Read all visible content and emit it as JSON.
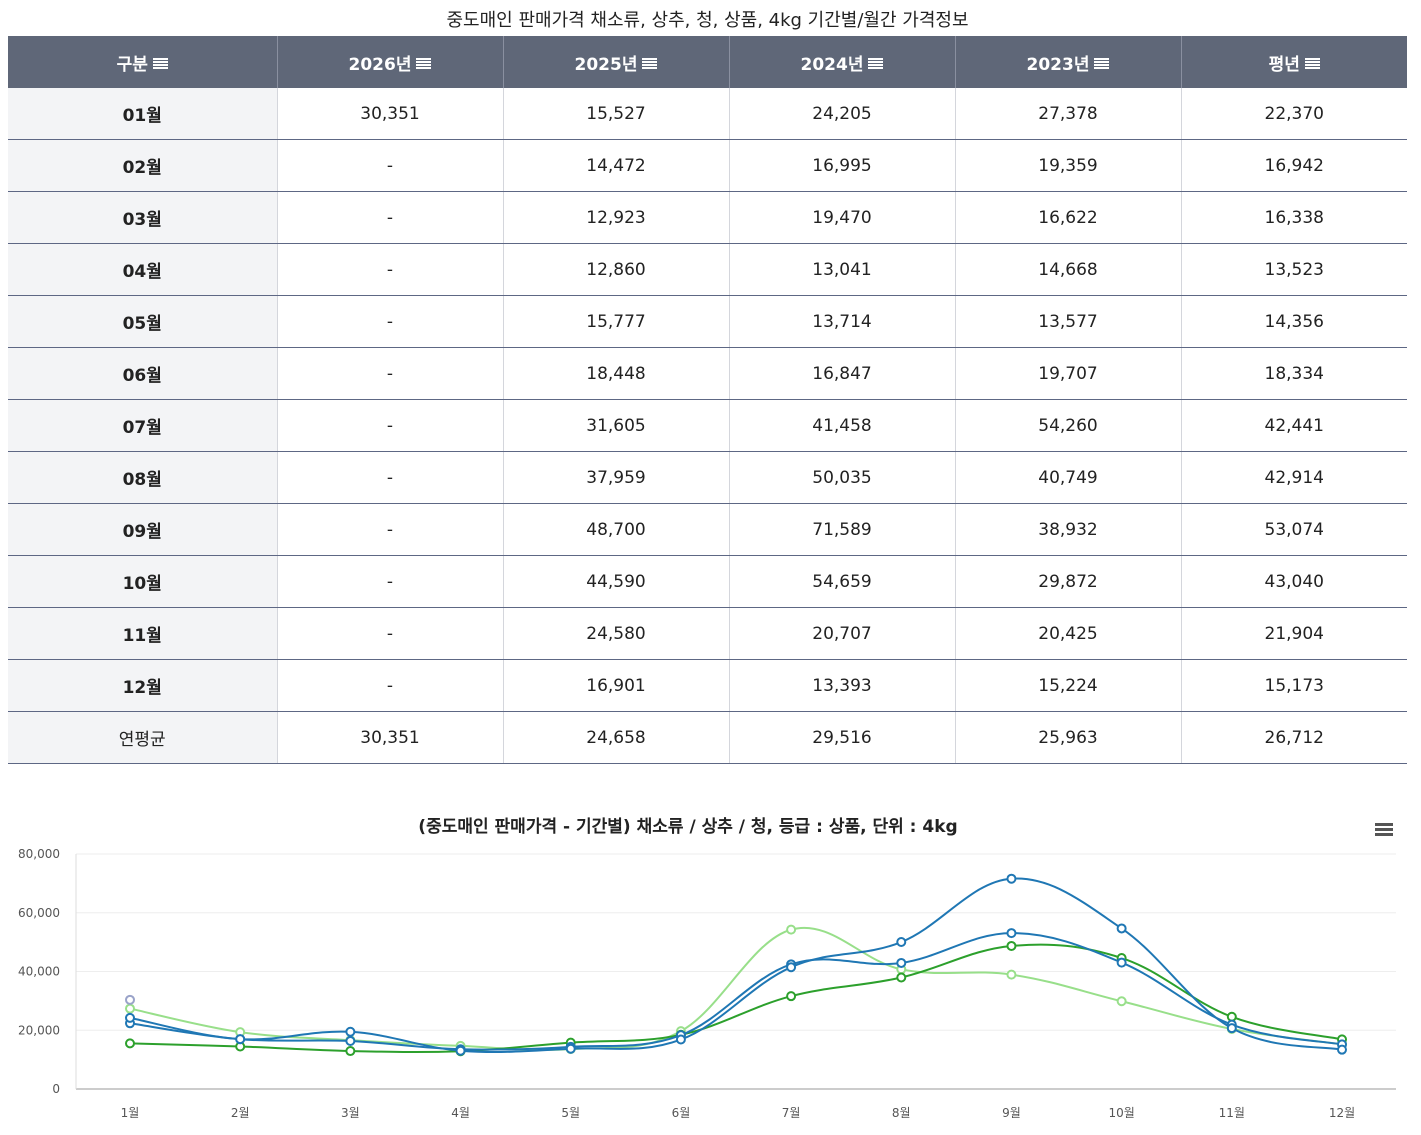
{
  "table": {
    "title": "중도매인 판매가격 채소류, 상추, 청, 상품, 4kg 기간별/월간 가격정보",
    "headers": [
      "구분",
      "2026년",
      "2025년",
      "2024년",
      "2023년",
      "평년"
    ],
    "rows": [
      {
        "label": "01월",
        "values": [
          "30,351",
          "15,527",
          "24,205",
          "27,378",
          "22,370"
        ]
      },
      {
        "label": "02월",
        "values": [
          "-",
          "14,472",
          "16,995",
          "19,359",
          "16,942"
        ]
      },
      {
        "label": "03월",
        "values": [
          "-",
          "12,923",
          "19,470",
          "16,622",
          "16,338"
        ]
      },
      {
        "label": "04월",
        "values": [
          "-",
          "12,860",
          "13,041",
          "14,668",
          "13,523"
        ]
      },
      {
        "label": "05월",
        "values": [
          "-",
          "15,777",
          "13,714",
          "13,577",
          "14,356"
        ]
      },
      {
        "label": "06월",
        "values": [
          "-",
          "18,448",
          "16,847",
          "19,707",
          "18,334"
        ]
      },
      {
        "label": "07월",
        "values": [
          "-",
          "31,605",
          "41,458",
          "54,260",
          "42,441"
        ]
      },
      {
        "label": "08월",
        "values": [
          "-",
          "37,959",
          "50,035",
          "40,749",
          "42,914"
        ]
      },
      {
        "label": "09월",
        "values": [
          "-",
          "48,700",
          "71,589",
          "38,932",
          "53,074"
        ]
      },
      {
        "label": "10월",
        "values": [
          "-",
          "44,590",
          "54,659",
          "29,872",
          "43,040"
        ]
      },
      {
        "label": "11월",
        "values": [
          "-",
          "24,580",
          "20,707",
          "20,425",
          "21,904"
        ]
      },
      {
        "label": "12월",
        "values": [
          "-",
          "16,901",
          "13,393",
          "15,224",
          "15,173"
        ]
      },
      {
        "label": "연평균",
        "values": [
          "30,351",
          "24,658",
          "29,516",
          "25,963",
          "26,712"
        ]
      }
    ]
  },
  "colors": {
    "header_bg": "#5f6778",
    "rowhead_bg": "#f3f4f6",
    "series_2025": "#2ca02c",
    "series_2024": "#1f77b4",
    "series_2023": "#98df8a",
    "series_avg": "#1f77b4"
  },
  "chart_data": {
    "type": "line",
    "title": "(중도매인 판매가격 - 기간별) 채소류 / 상추 / 청, 등급 : 상품, 단위 : 4kg",
    "categories": [
      "1월",
      "2월",
      "3월",
      "4월",
      "5월",
      "6월",
      "7월",
      "8월",
      "9월",
      "10월",
      "11월",
      "12월"
    ],
    "ylim": [
      0,
      80000
    ],
    "yticks": [
      0,
      20000,
      40000,
      60000,
      80000
    ],
    "ytick_labels": [
      "0",
      "20,000",
      "40,000",
      "60,000",
      "80,000"
    ],
    "xlabel": "",
    "ylabel": "",
    "series": [
      {
        "name": "2025년",
        "color": "#2ca02c",
        "values": [
          15527,
          14472,
          12923,
          12860,
          15777,
          18448,
          31605,
          37959,
          48700,
          44590,
          24580,
          16901
        ]
      },
      {
        "name": "2024년",
        "color": "#1f77b4",
        "values": [
          24205,
          16995,
          19470,
          13041,
          13714,
          16847,
          41458,
          50035,
          71589,
          54659,
          20707,
          13393
        ]
      },
      {
        "name": "2023년",
        "color": "#98df8a",
        "values": [
          27378,
          19359,
          16622,
          14668,
          13577,
          19707,
          54260,
          40749,
          38932,
          29872,
          20425,
          15224
        ]
      },
      {
        "name": "평년",
        "color": "#1f77b4",
        "values": [
          22370,
          16942,
          16338,
          13523,
          14356,
          18334,
          42441,
          42914,
          53074,
          43040,
          21904,
          15173
        ]
      },
      {
        "name": "2026년",
        "color": "#9aa3c9",
        "values": [
          30351,
          null,
          null,
          null,
          null,
          null,
          null,
          null,
          null,
          null,
          null,
          null
        ]
      }
    ]
  }
}
